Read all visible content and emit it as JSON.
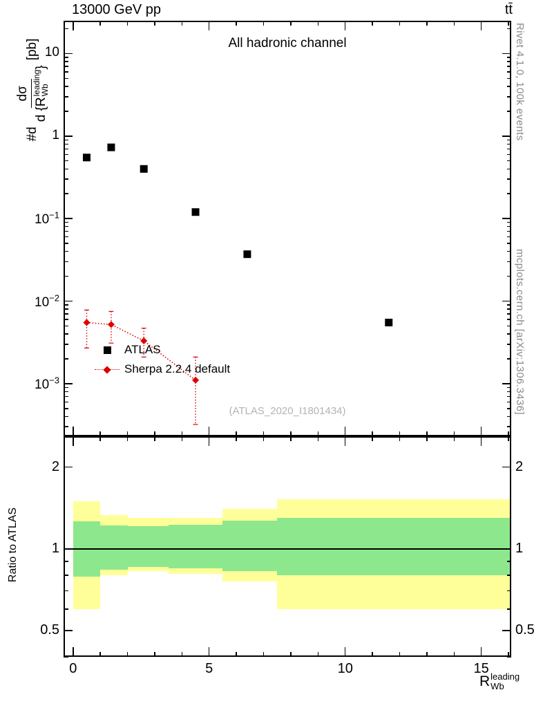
{
  "header": {
    "left": "13000 GeV pp",
    "right": "tt̄"
  },
  "titles": {
    "panel_title": "All hadronic channel",
    "watermark": "(ATLAS_2020_I1801434)",
    "right_top": "Rivet 4.1.0,  100k events",
    "right_bottom": "mcplots.cern.ch [arXiv:1306.3436]",
    "ratio_ylabel": "Ratio to ATLAS",
    "xlabel": {
      "base": "R",
      "sub": "Wb",
      "sup": "leading"
    },
    "ylabel": {
      "prefix": "#d",
      "num": "dσ",
      "den_pre": "d {R",
      "den_sub": "Wb",
      "den_sup": "leading",
      "den_post": "}",
      "unit": "[pb]"
    }
  },
  "chart_data": {
    "type": "scatter",
    "title": "All hadronic channel",
    "xlabel": "R_Wb^leading",
    "ylabel": "dσ/d{R_Wb^leading} [pb]",
    "xlim": [
      -0.35,
      16.1
    ],
    "main_ylog_lim": [
      0.00023,
      25
    ],
    "ratio_ylog_lim": [
      0.4,
      2.6
    ],
    "xticks_major": [
      0,
      5,
      10,
      15
    ],
    "xtick_minor_step": 1,
    "main_yticks": [
      {
        "v": 10,
        "t": "10"
      },
      {
        "v": 1,
        "t": "1"
      },
      {
        "v": 0.1,
        "t": "10^−1"
      },
      {
        "v": 0.01,
        "t": "10^−2"
      },
      {
        "v": 0.001,
        "t": "10^−3"
      }
    ],
    "ratio_yticks": [
      {
        "v": 2,
        "t": "2"
      },
      {
        "v": 1,
        "t": "1"
      },
      {
        "v": 0.5,
        "t": "0.5"
      }
    ],
    "ratio_minor_ticks": [
      0.4,
      0.6,
      0.7,
      0.8,
      0.9
    ],
    "series": [
      {
        "name": "ATLAS",
        "marker": "square",
        "color": "#000000",
        "points": [
          [
            0.5,
            0.55
          ],
          [
            1.4,
            0.73
          ],
          [
            2.6,
            0.4
          ],
          [
            4.5,
            0.12
          ],
          [
            6.4,
            0.037
          ],
          [
            11.6,
            0.0055
          ]
        ]
      },
      {
        "name": "Sherpa 2.2.4 default",
        "marker": "diamond",
        "color": "#dd0000",
        "line": "dotted",
        "points": [
          [
            0.5,
            0.0055
          ],
          [
            1.4,
            0.0052
          ],
          [
            2.6,
            0.0033
          ],
          [
            4.5,
            0.0011
          ]
        ],
        "errors": [
          [
            0.0027,
            0.0078
          ],
          [
            0.0031,
            0.0075
          ],
          [
            0.0021,
            0.0047
          ],
          [
            0.00032,
            0.0021
          ]
        ]
      }
    ],
    "ratio_reference": 1,
    "ratio_bands": [
      {
        "x0": 0,
        "x1": 1,
        "yellow": [
          0.6,
          1.5
        ],
        "green": [
          0.79,
          1.26
        ]
      },
      {
        "x0": 1,
        "x1": 2,
        "yellow": [
          0.8,
          1.33
        ],
        "green": [
          0.84,
          1.22
        ]
      },
      {
        "x0": 2,
        "x1": 3.5,
        "yellow": [
          0.83,
          1.3
        ],
        "green": [
          0.86,
          1.21
        ]
      },
      {
        "x0": 3.5,
        "x1": 5.5,
        "yellow": [
          0.81,
          1.3
        ],
        "green": [
          0.85,
          1.23
        ]
      },
      {
        "x0": 5.5,
        "x1": 7.5,
        "yellow": [
          0.76,
          1.4
        ],
        "green": [
          0.83,
          1.27
        ]
      },
      {
        "x0": 7.5,
        "x1": 16.1,
        "yellow": [
          0.6,
          1.52
        ],
        "green": [
          0.8,
          1.3
        ]
      }
    ],
    "colors": {
      "band_yellow": "#ffff99",
      "band_green": "#8de88d",
      "sherpa_red": "#dd0000",
      "atlas_black": "#000000",
      "gray_text": "#8a8a8a"
    }
  }
}
